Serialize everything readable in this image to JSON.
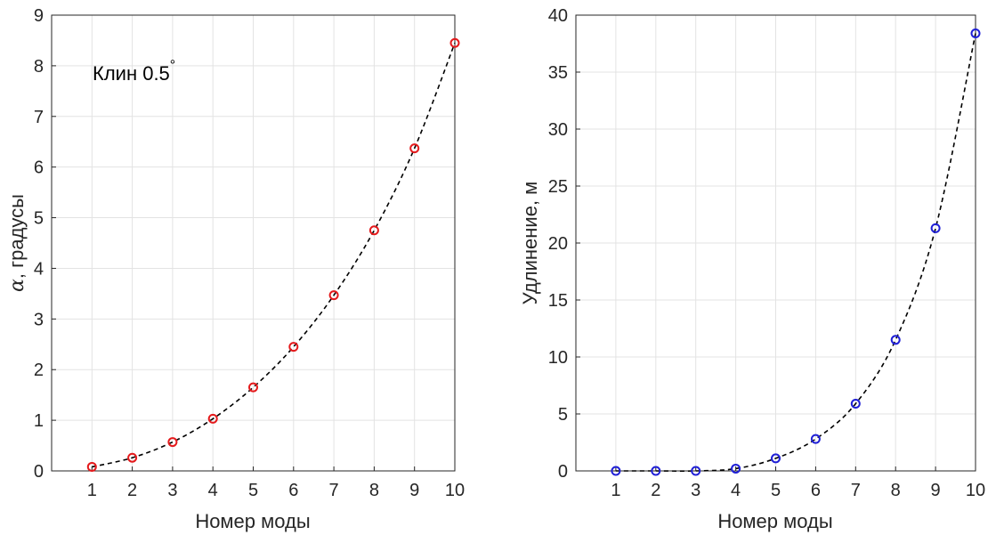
{
  "chart_data": [
    {
      "type": "scatter",
      "x": [
        1,
        2,
        3,
        4,
        5,
        6,
        7,
        8,
        9,
        10
      ],
      "xlabel": "Номер моды",
      "ylabel_symbol": "α",
      "ylabel": ", градусы",
      "xlim": [
        0,
        10
      ],
      "ylim": [
        0,
        9
      ],
      "xticks": [
        1,
        2,
        3,
        4,
        5,
        6,
        7,
        8,
        9,
        10
      ],
      "yticks": [
        0,
        1,
        2,
        3,
        4,
        5,
        6,
        7,
        8,
        9
      ],
      "grid": true,
      "annotation": "Клин 0.5",
      "annotation_superscript": "°",
      "series": [
        {
          "values": [
            0.08,
            0.26,
            0.57,
            1.03,
            1.65,
            2.45,
            3.47,
            4.75,
            6.37,
            8.45
          ],
          "color": "#e41a1c",
          "marker": "circle",
          "fit_line": "dashed",
          "fit_color": "#000000"
        }
      ]
    },
    {
      "type": "scatter",
      "x": [
        1,
        2,
        3,
        4,
        5,
        6,
        7,
        8,
        9,
        10
      ],
      "xlabel": "Номер моды",
      "ylabel": "Удлинение, м",
      "xlim": [
        0,
        10
      ],
      "ylim": [
        0,
        40
      ],
      "xticks": [
        1,
        2,
        3,
        4,
        5,
        6,
        7,
        8,
        9,
        10
      ],
      "yticks": [
        0,
        5,
        10,
        15,
        20,
        25,
        30,
        35,
        40
      ],
      "grid": true,
      "series": [
        {
          "values": [
            0.0,
            0.0,
            0.0,
            0.2,
            1.1,
            2.8,
            5.9,
            11.5,
            21.3,
            38.4
          ],
          "color": "#1f1fd6",
          "marker": "circle",
          "fit_line": "dashed",
          "fit_color": "#000000"
        }
      ]
    }
  ]
}
